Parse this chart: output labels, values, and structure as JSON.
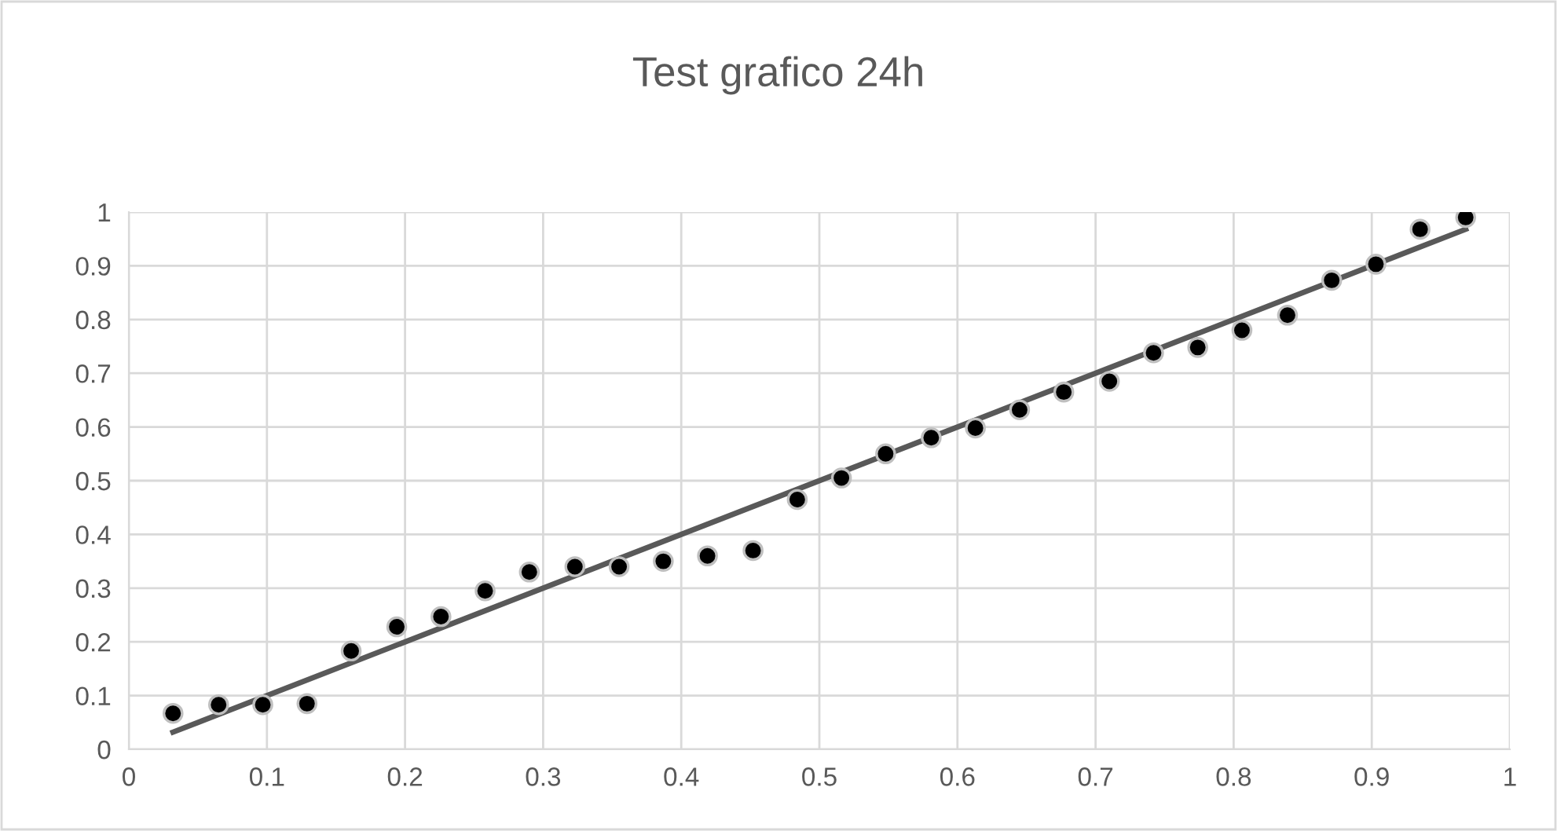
{
  "chart_data": {
    "type": "scatter",
    "title": "Test grafico 24h",
    "series": [
      {
        "color": "#000000",
        "marker": "circle",
        "x": [
          0.032,
          0.065,
          0.097,
          0.129,
          0.161,
          0.194,
          0.226,
          0.258,
          0.29,
          0.323,
          0.355,
          0.387,
          0.419,
          0.452,
          0.484,
          0.516,
          0.548,
          0.581,
          0.613,
          0.645,
          0.677,
          0.71,
          0.742,
          0.774,
          0.806,
          0.839,
          0.871,
          0.903,
          0.935,
          0.968
        ],
        "values": [
          0.067,
          0.083,
          0.083,
          0.085,
          0.183,
          0.228,
          0.247,
          0.295,
          0.33,
          0.34,
          0.34,
          0.35,
          0.36,
          0.37,
          0.465,
          0.505,
          0.55,
          0.58,
          0.598,
          0.632,
          0.665,
          0.685,
          0.738,
          0.748,
          0.78,
          0.808,
          0.873,
          0.903,
          0.968,
          0.99
        ]
      },
      {
        "type": "line",
        "marker": "none",
        "color": "#595959",
        "x": [
          0.032,
          0.968
        ],
        "values": [
          0.032,
          0.968
        ]
      }
    ],
    "xlim": [
      0,
      1
    ],
    "xticks": [
      0,
      0.1,
      0.2,
      0.3,
      0.4,
      0.5,
      0.6,
      0.7,
      0.8,
      0.9,
      1
    ],
    "ylim": [
      0,
      1
    ],
    "yticks": [
      0,
      0.1,
      0.2,
      0.3,
      0.4,
      0.5,
      0.6,
      0.7,
      0.8,
      0.9,
      1
    ],
    "grid": true
  }
}
